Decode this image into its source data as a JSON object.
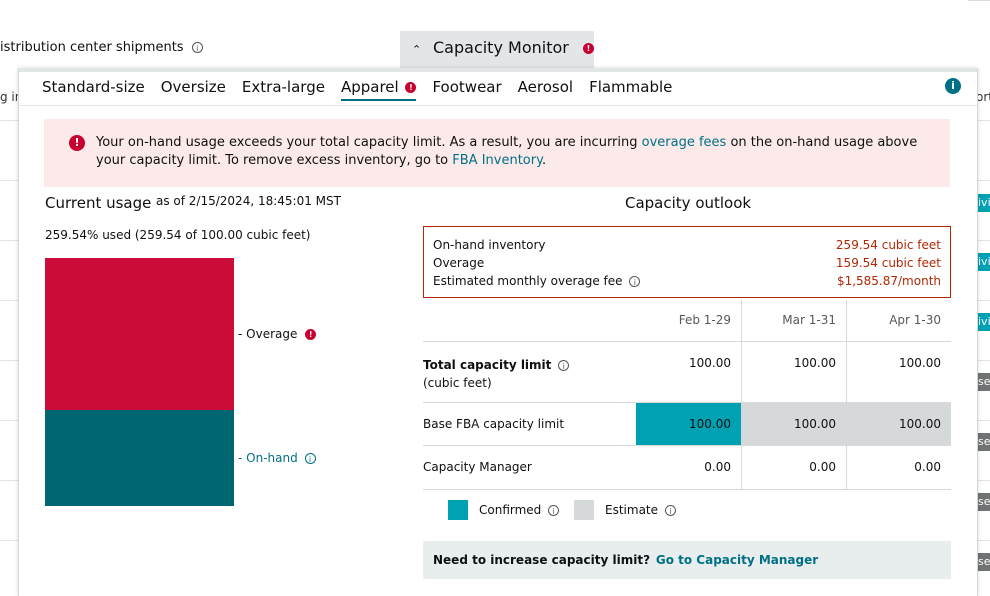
{
  "background": {
    "shipments_label": "istribution center shipments",
    "left_fragment": "g in",
    "right_fragment": "ort",
    "right_badges": [
      "ivi",
      "ivi",
      "ivi",
      "sec",
      "sec",
      "sec",
      "sec"
    ]
  },
  "capacity_monitor": {
    "title": "Capacity Monitor",
    "expanded": true
  },
  "tabs": [
    {
      "label": "Standard-size",
      "active": false
    },
    {
      "label": "Oversize",
      "active": false
    },
    {
      "label": "Extra-large",
      "active": false
    },
    {
      "label": "Apparel",
      "active": true,
      "alert": true
    },
    {
      "label": "Footwear",
      "active": false
    },
    {
      "label": "Aerosol",
      "active": false
    },
    {
      "label": "Flammable",
      "active": false
    }
  ],
  "alert": {
    "text_before": "Your on-hand usage exceeds your total capacity limit. As a result, you are incurring ",
    "link1": "overage fees",
    "text_middle": " on the on-hand usage above your capacity limit. To remove excess inventory, go to ",
    "link2": "FBA Inventory",
    "text_after": "."
  },
  "current_usage": {
    "title": "Current usage",
    "as_of": "as of 2/15/2024, 18:45:01 MST",
    "used_text": "259.54% used (259.54 of 100.00 cubic feet)",
    "legend_overage": "Overage",
    "legend_onhand": "On-hand",
    "used_cubic_feet": 259.54,
    "limit_cubic_feet": 100.0,
    "overage_cubic_feet": 159.54
  },
  "capacity_outlook": {
    "title": "Capacity outlook",
    "summary": [
      {
        "label": "On-hand inventory",
        "value": "259.54 cubic feet",
        "info": false
      },
      {
        "label": "Overage",
        "value": "159.54 cubic feet",
        "info": false
      },
      {
        "label": "Estimated monthly overage fee",
        "value": "$1,585.87/month",
        "info": true
      }
    ],
    "columns": [
      "Feb 1-29",
      "Mar 1-31",
      "Apr 1-30"
    ],
    "rows": [
      {
        "label": "Total capacity limit",
        "sublabel": "(cubic feet)",
        "bold": true,
        "values": [
          "100.00",
          "100.00",
          "100.00"
        ]
      },
      {
        "label": "Base FBA capacity limit",
        "values": [
          "100.00",
          "100.00",
          "100.00"
        ],
        "states": [
          "confirmed",
          "estimate",
          "estimate"
        ]
      },
      {
        "label": "Capacity Manager",
        "values": [
          "0.00",
          "0.00",
          "0.00"
        ]
      }
    ],
    "legend": {
      "confirmed": "Confirmed",
      "estimate": "Estimate"
    },
    "colors": {
      "confirmed": "#00a1b3",
      "estimate": "#d5d9d9",
      "overage": "#cc0c39",
      "onhand": "#006672"
    },
    "footer_question": "Need to increase capacity limit?",
    "footer_link": "Go to Capacity Manager"
  }
}
